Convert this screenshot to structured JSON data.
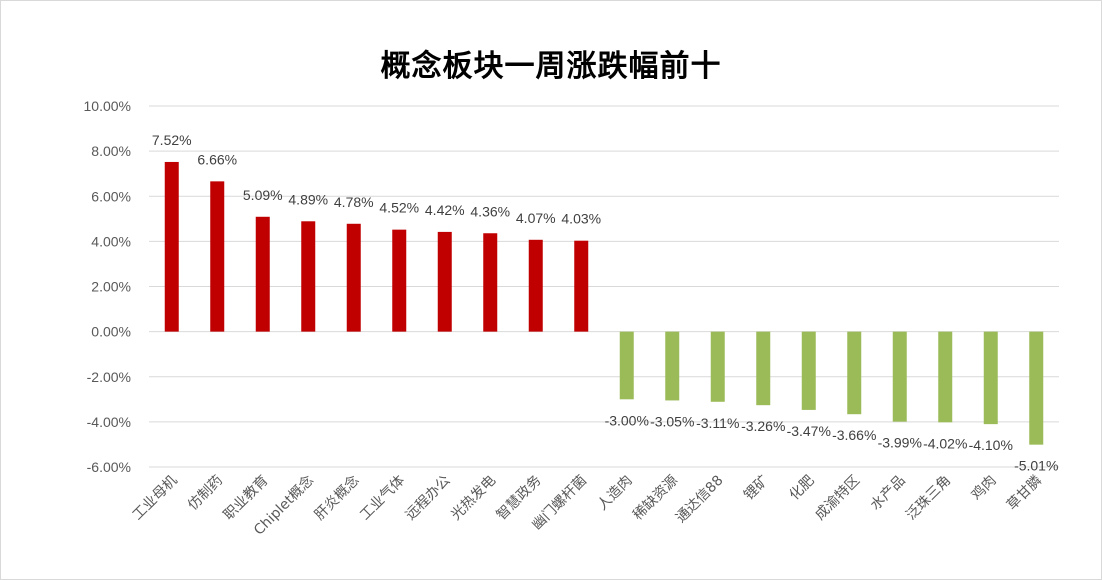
{
  "chart_data": {
    "type": "bar",
    "title": "概念板块一周涨跌幅前十",
    "categories": [
      "工业母机",
      "仿制药",
      "职业教育",
      "Chiplet概念",
      "肝炎概念",
      "工业气体",
      "远程办公",
      "光热发电",
      "智慧政务",
      "幽门螺杆菌",
      "人造肉",
      "稀缺资源",
      "通达信88",
      "锂矿",
      "化肥",
      "成渝特区",
      "水产品",
      "泛珠三角",
      "鸡肉",
      "草甘膦"
    ],
    "values": [
      7.52,
      6.66,
      5.09,
      4.89,
      4.78,
      4.52,
      4.42,
      4.36,
      4.07,
      4.03,
      -3.0,
      -3.05,
      -3.11,
      -3.26,
      -3.47,
      -3.66,
      -3.99,
      -4.02,
      -4.1,
      -5.01
    ],
    "data_labels": [
      "7.52%",
      "6.66%",
      "5.09%",
      "4.89%",
      "4.78%",
      "4.52%",
      "4.42%",
      "4.36%",
      "4.07%",
      "4.03%",
      "-3.00%",
      "-3.05%",
      "-3.11%",
      "-3.26%",
      "-3.47%",
      "-3.66%",
      "-3.99%",
      "-4.02%",
      "-4.10%",
      "-5.01%"
    ],
    "y_ticks": [
      "10.00%",
      "8.00%",
      "6.00%",
      "4.00%",
      "2.00%",
      "0.00%",
      "-2.00%",
      "-4.00%",
      "-6.00%"
    ],
    "ylim": [
      -6,
      10
    ],
    "grid": true,
    "colors": {
      "positive": "#c00000",
      "negative": "#9bbb59",
      "grid": "#d9d9d9"
    }
  }
}
